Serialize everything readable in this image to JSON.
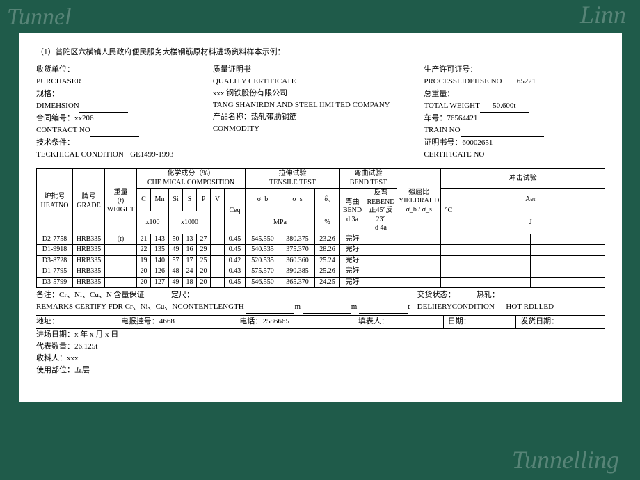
{
  "title_note": "（1）普陀区六横镇人民政府便民服务大楼钢筋原材料进场资料样本示例：",
  "left": {
    "purchaser_cn": "收货单位：",
    "purchaser_en": "PURCHASER",
    "spec_cn": "规格：",
    "spec_en": "DIMEHSION",
    "contract_cn": "合同编号：",
    "contract_val": "xx206",
    "contract_en": "CONTRACT  NO",
    "tech_cn": "技术条件：",
    "tech_en": "TECKHICAL  CONDITION",
    "tech_val": "GE1499-1993"
  },
  "mid": {
    "t1": "质量证明书",
    "t2": "QUALITY  CERTIFICATE",
    "t3": "xxx 钢铁股份有限公司",
    "t4": "TANG  SHANIRDN    AND    STEEL    IIMI   TED COMPANY",
    "t5": "产品名称：热轧带肋钢筋",
    "t6": "CONMODITY"
  },
  "right": {
    "lic_cn": "生产许可证号：",
    "lic_en": "PROCESSLIDEHSE NO",
    "lic_val": "65221",
    "gw_cn": "总重量：",
    "gw_en": "TOTAL WEIGHT",
    "gw_val": "50.600t",
    "train_cn": "车号：",
    "train_val": "76564421",
    "train_en": "TRAIN NO",
    "cert_cn": "证明书号：",
    "cert_val": "60002651",
    "cert_en": "CERTIFICATE NO"
  },
  "columns": {
    "heat_cn": "炉批号",
    "heat_en": "HEATNO",
    "grade_cn": "牌号",
    "grade_en": "GRADE",
    "weight_cn": "重量",
    "weight_unit": "(t)",
    "weight_en": "WEIGHT",
    "chem_cn": "化学成分（%）",
    "chem_en": "CHE MICAL COMPOSITION",
    "C": "C",
    "Mn": "Mn",
    "Si": "Si",
    "S": "S",
    "P": "P",
    "V": "V",
    "Ceq": "Ceq",
    "x100": "x100",
    "x1000": "x1000",
    "tens_cn": "拉伸试验",
    "tens_en": "TENSILE TEST",
    "sb": "σ_b",
    "ss": "σ_s",
    "d5": "δ₅",
    "mpa": "MPa",
    "pct": "%",
    "bend_cn": "弯曲试验",
    "bend_en": "BEND TEST",
    "bend_l1": "弯曲",
    "bend_l2": "BEND",
    "bend_l3": "d  3a",
    "rebend_cn": "反弯",
    "rebend_en": "REBEND",
    "rebend_l2": "正45°反",
    "rebend_l3": "23°",
    "rebend_l4": "d  4a",
    "yr_cn": "强屈比",
    "yr_en": "YIELDRAHD",
    "yr_f": "σ_b / σ_s",
    "imp_cn": "冲击试验",
    "degC": "°C",
    "Aer": "Aer",
    "J": "J"
  },
  "rows": [
    {
      "heat": "D2-7758",
      "grade": "HRB335",
      "wt": "(t)",
      "C": "21",
      "Mn": "143",
      "Si": "50",
      "S": "13",
      "P": "27",
      "V": "",
      "Ceq": "0.45",
      "sb": "545.550",
      "ss": "380.375",
      "d5": "23.26",
      "bend": "完好"
    },
    {
      "heat": "D1-9918",
      "grade": "HRB335",
      "wt": "",
      "C": "22",
      "Mn": "135",
      "Si": "49",
      "S": "16",
      "P": "29",
      "V": "",
      "Ceq": "0.45",
      "sb": "540.535",
      "ss": "375.370",
      "d5": "28.26",
      "bend": "完好"
    },
    {
      "heat": "D3-8728",
      "grade": "HRB335",
      "wt": "",
      "C": "19",
      "Mn": "140",
      "Si": "57",
      "S": "17",
      "P": "25",
      "V": "",
      "Ceq": "0.42",
      "sb": "520.535",
      "ss": "360.360",
      "d5": "25.24",
      "bend": "完好"
    },
    {
      "heat": "D1-7795",
      "grade": "HRB335",
      "wt": "",
      "C": "20",
      "Mn": "126",
      "Si": "48",
      "S": "24",
      "P": "20",
      "V": "",
      "Ceq": "0.43",
      "sb": "575.570",
      "ss": "390.385",
      "d5": "25.26",
      "bend": "完好"
    },
    {
      "heat": "D3-5799",
      "grade": "HRB335",
      "wt": "",
      "C": "20",
      "Mn": "127",
      "Si": "49",
      "S": "18",
      "P": "20",
      "V": "",
      "Ceq": "0.45",
      "sb": "546.550",
      "ss": "365.370",
      "d5": "24.25",
      "bend": "完好"
    }
  ],
  "footer": {
    "remarks_cn": "备注：Cr、Ni、Cu、N 含量保证",
    "remarks_en": "REMARKS CERTIFY FDR Cr、Ni、Cu、NCONTENTLENGTH",
    "dim": "定尺：",
    "m1": "m",
    "m2": "m",
    "t": "t",
    "deliv_cn": "交货状态：",
    "deliv_en": "DELIIERYCONDITION",
    "hot_cn": "热轧：",
    "hot_en": "HOT-RDLLED",
    "addr": "地址：",
    "dial": "电报挂号：",
    "dial_v": "4668",
    "tel": "电话：",
    "tel_v": "2586665",
    "fill": "填表人：",
    "date": "日期：",
    "ship": "发货日期：",
    "l1": "进场日期：x 年 x 月 x 日",
    "l2": "代表数量：26.125t",
    "l3": "收料人：xxx",
    "l4": "使用部位：五层"
  }
}
